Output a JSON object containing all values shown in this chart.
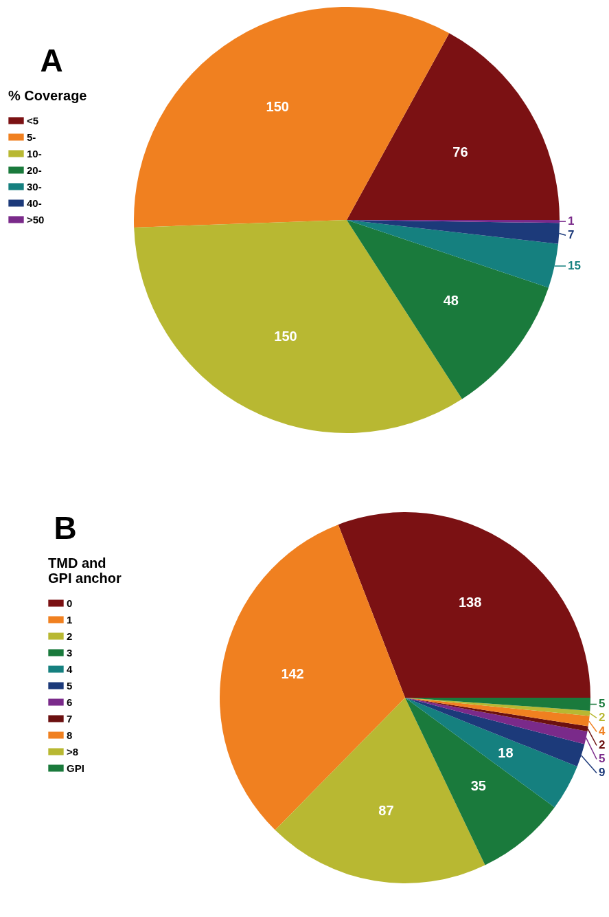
{
  "chart_data": [
    {
      "type": "pie",
      "title": "A",
      "legend_title": "% Coverage",
      "legend": "left",
      "data_labels": true,
      "categories": [
        "<5",
        "5-",
        "10-",
        "20-",
        "30-",
        "40-",
        ">50"
      ],
      "values": [
        76,
        150,
        150,
        48,
        15,
        7,
        1
      ],
      "colors": [
        "#7b1113",
        "#f08020",
        "#b8b832",
        "#1a7a3c",
        "#15807f",
        "#1c3a7a",
        "#7a2a8a"
      ]
    },
    {
      "type": "pie",
      "title": "B",
      "legend_title": "TMD and GPI anchor",
      "legend": "left",
      "data_labels": true,
      "categories": [
        "0",
        "1",
        "2",
        "3",
        "4",
        "5",
        "6",
        "7",
        "8",
        ">8",
        "GPI"
      ],
      "values": [
        138,
        142,
        87,
        35,
        18,
        9,
        5,
        2,
        4,
        2,
        5
      ],
      "colors": [
        "#7b1113",
        "#f08020",
        "#b8b832",
        "#1a7a3c",
        "#15807f",
        "#1c3a7a",
        "#7a2a8a",
        "#6b1010",
        "#f08020",
        "#b8b832",
        "#1a7a3c"
      ]
    }
  ]
}
